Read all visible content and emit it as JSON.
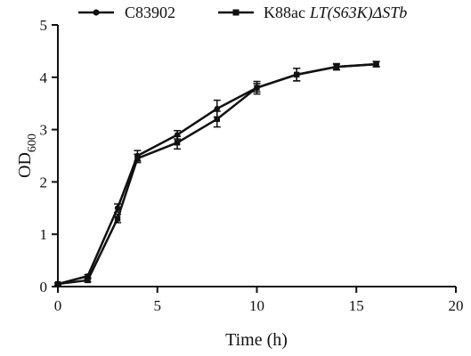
{
  "chart_data": {
    "type": "line",
    "xlabel": "Time (h)",
    "ylabel": {
      "main": "OD",
      "sub": "600"
    },
    "xlim": [
      0,
      20
    ],
    "ylim": [
      0,
      5
    ],
    "xticks": [
      0,
      5,
      10,
      15,
      20
    ],
    "yticks": [
      0,
      1,
      2,
      3,
      4,
      5
    ],
    "xtick_labels": [
      "0",
      "5",
      "10",
      "15",
      "20"
    ],
    "ytick_labels": [
      "0",
      "1",
      "2",
      "3",
      "4",
      "5"
    ],
    "grid": false,
    "legend_position": "top",
    "series": [
      {
        "name": "C83902",
        "marker": "circle",
        "color": "#111111",
        "x": [
          0,
          1.5,
          3,
          4,
          6,
          8,
          10,
          12,
          14,
          16
        ],
        "y": [
          0.05,
          0.2,
          1.5,
          2.5,
          2.9,
          3.4,
          3.8,
          4.05,
          4.2,
          4.25
        ],
        "err": [
          0.02,
          0.03,
          0.08,
          0.1,
          0.08,
          0.16,
          0.12,
          0.12,
          0.05,
          0.05
        ]
      },
      {
        "name": "K88ac",
        "name_suffix": "LT(S63K)ΔSTb",
        "marker": "square",
        "color": "#111111",
        "x": [
          0,
          1.5,
          3,
          4,
          6,
          8,
          10,
          12,
          14,
          16
        ],
        "y": [
          0.05,
          0.12,
          1.3,
          2.45,
          2.75,
          3.2,
          3.8,
          4.05,
          4.2,
          4.25
        ],
        "err": [
          0.02,
          0.03,
          0.08,
          0.08,
          0.12,
          0.15,
          0.08,
          0.12,
          0.06,
          0.05
        ]
      }
    ]
  }
}
